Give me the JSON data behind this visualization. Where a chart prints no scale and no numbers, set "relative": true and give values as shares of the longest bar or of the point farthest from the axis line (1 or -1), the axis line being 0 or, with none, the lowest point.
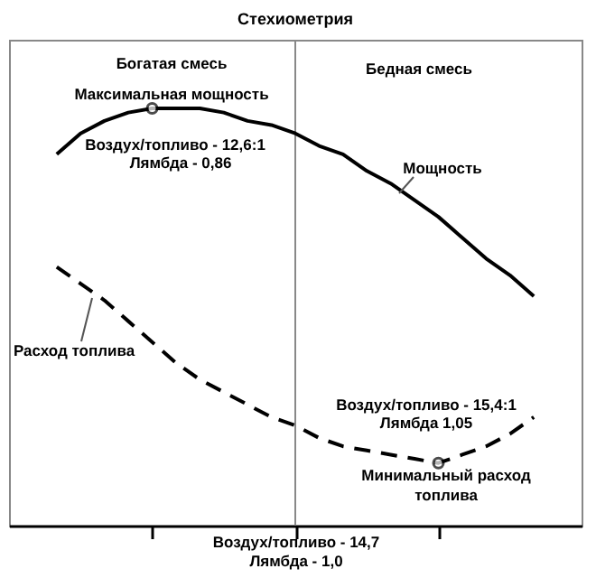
{
  "chart_data": {
    "type": "line",
    "title": "Стехиометрия",
    "xlabel": "Лямбда - 1,0",
    "relative": true,
    "grid": false,
    "marker": "none",
    "categories": [
      null,
      null,
      null,
      null,
      null,
      null,
      null,
      null,
      null,
      null,
      null,
      null,
      null,
      null,
      null,
      null,
      null,
      null,
      null,
      null,
      null,
      null,
      null,
      null,
      null
    ],
    "series": [
      {
        "name": "Мощность",
        "color": "#000000",
        "line_style": "solid",
        "values": [
          null,
          null,
          0.89,
          0.94,
          0.97,
          0.99,
          1.0,
          1.0,
          1.0,
          0.99,
          0.97,
          0.96,
          0.94,
          0.91,
          0.89,
          0.85,
          0.82,
          0.78,
          0.74,
          0.69,
          0.64,
          0.6,
          0.55,
          null,
          null
        ]
      },
      {
        "name": "Расход топлива",
        "color": "#000000",
        "line_style": "dashed",
        "values": [
          null,
          null,
          0.62,
          0.58,
          0.54,
          0.49,
          0.44,
          0.39,
          0.35,
          0.32,
          0.29,
          0.26,
          0.24,
          0.21,
          0.19,
          0.18,
          0.17,
          0.16,
          0.15,
          0.17,
          0.19,
          0.22,
          0.26,
          null,
          null
        ]
      }
    ],
    "annotations": [
      "Воздух/топливо - 14,7",
      "Богатая смесь",
      "Бедная смесь",
      "Максимальная мощность",
      "Воздух/топливо - 12,6:1",
      "Лямбда - 0,86",
      "Воздух/топливо - 15,4:1",
      "Лямбда 1,05",
      "Минимальный расход",
      "топлива"
    ]
  }
}
